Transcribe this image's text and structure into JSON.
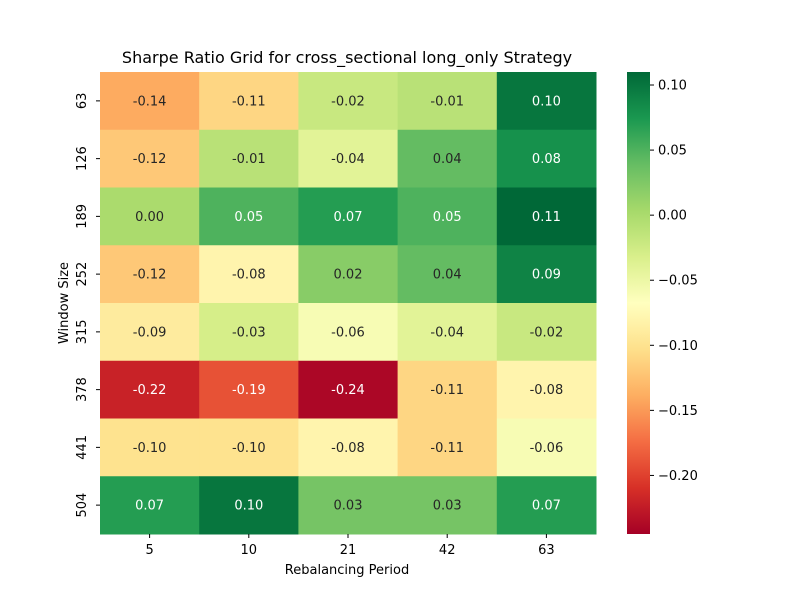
{
  "chart_data": {
    "type": "heatmap",
    "title": "Sharpe Ratio Grid for cross_sectional long_only Strategy",
    "xlabel": "Rebalancing Period",
    "ylabel": "Window Size",
    "x_categories": [
      "5",
      "10",
      "21",
      "42",
      "63"
    ],
    "y_categories": [
      "63",
      "126",
      "189",
      "252",
      "315",
      "378",
      "441",
      "504"
    ],
    "values": [
      [
        -0.14,
        -0.11,
        -0.02,
        -0.01,
        0.1
      ],
      [
        -0.12,
        -0.01,
        -0.04,
        0.04,
        0.08
      ],
      [
        0.0,
        0.05,
        0.07,
        0.05,
        0.11
      ],
      [
        -0.12,
        -0.08,
        0.02,
        0.04,
        0.09
      ],
      [
        -0.09,
        -0.03,
        -0.06,
        -0.04,
        -0.02
      ],
      [
        -0.22,
        -0.19,
        -0.24,
        -0.11,
        -0.08
      ],
      [
        -0.1,
        -0.1,
        -0.08,
        -0.11,
        -0.06
      ],
      [
        0.07,
        0.1,
        0.03,
        0.03,
        0.07
      ]
    ],
    "value_labels": [
      [
        "-0.14",
        "-0.11",
        "-0.02",
        "-0.01",
        "0.10"
      ],
      [
        "-0.12",
        "-0.01",
        "-0.04",
        "0.04",
        "0.08"
      ],
      [
        "0.00",
        "0.05",
        "0.07",
        "0.05",
        "0.11"
      ],
      [
        "-0.12",
        "-0.08",
        "0.02",
        "0.04",
        "0.09"
      ],
      [
        "-0.09",
        "-0.03",
        "-0.06",
        "-0.04",
        "-0.02"
      ],
      [
        "-0.22",
        "-0.19",
        "-0.24",
        "-0.11",
        "-0.08"
      ],
      [
        "-0.10",
        "-0.10",
        "-0.08",
        "-0.11",
        "-0.06"
      ],
      [
        "0.07",
        "0.10",
        "0.03",
        "0.03",
        "0.07"
      ]
    ],
    "colormap": "RdYlGn",
    "color_range": [
      -0.245,
      0.11
    ],
    "colorbar_ticks": [
      0.1,
      0.05,
      0.0,
      -0.05,
      -0.1,
      -0.15,
      -0.2
    ],
    "colorbar_tick_labels": [
      "0.10",
      "0.05",
      "0.00",
      "−0.05",
      "−0.10",
      "−0.15",
      "−0.20"
    ],
    "grid": false,
    "legend": "colorbar-right"
  }
}
